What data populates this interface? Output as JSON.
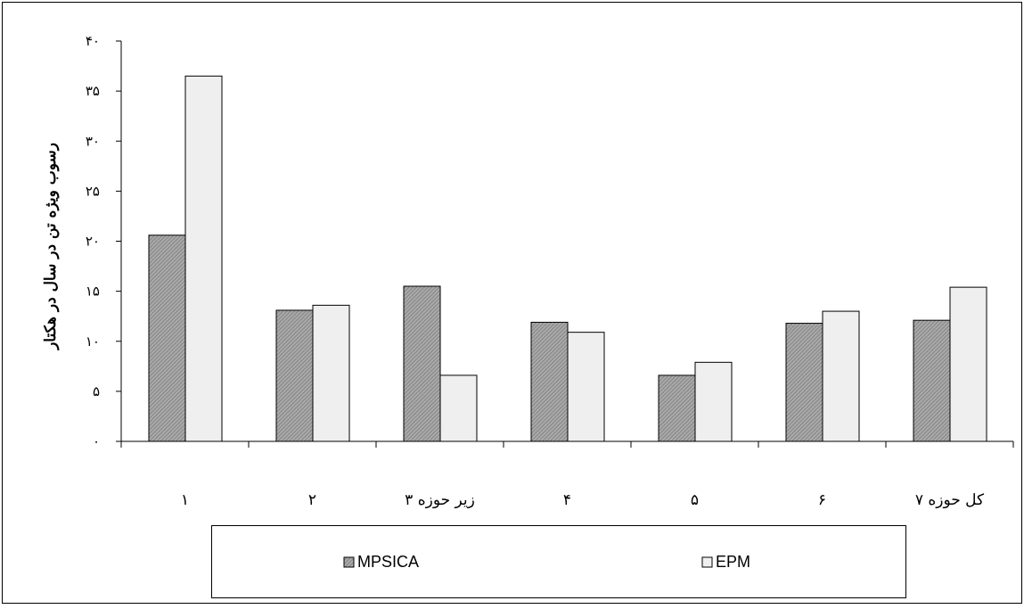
{
  "chart_data": {
    "type": "bar",
    "title": "",
    "xlabel": "",
    "ylabel": "رسوب ویژه تن در سال در هکتار",
    "ylim": [
      0,
      40
    ],
    "yticks": [
      "۰",
      "۵",
      "۱۰",
      "۱۵",
      "۲۰",
      "۲۵",
      "۳۰",
      "۳۵",
      "۴۰"
    ],
    "categories": [
      "۱",
      "۲",
      "زیر حوزه ۳",
      "۴",
      "۵",
      "۶",
      "کل حوزه ۷"
    ],
    "series": [
      {
        "name": "MPSICA",
        "values": [
          20.6,
          13.1,
          15.5,
          11.9,
          6.6,
          11.8,
          12.1
        ],
        "fill": "hatched-gray",
        "color": "#8c8c8c"
      },
      {
        "name": "EPM",
        "values": [
          36.5,
          13.6,
          6.6,
          10.9,
          7.9,
          13.0,
          15.4
        ],
        "fill": "light-gray",
        "color": "#efefef"
      }
    ],
    "grid": false,
    "legend_position": "bottom",
    "legend_frame": true
  }
}
